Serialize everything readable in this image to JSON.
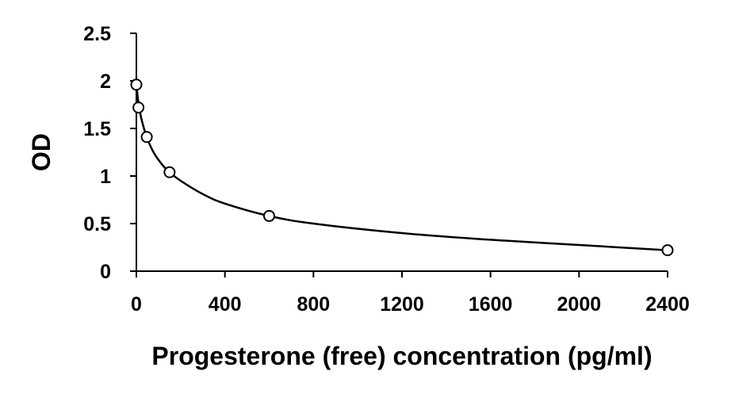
{
  "chart_data": {
    "type": "scatter",
    "title": "",
    "xlabel": "Progesterone (free) concentration (pg/ml)",
    "ylabel": "OD",
    "xlim": [
      0,
      2400
    ],
    "ylim": [
      0,
      2.5
    ],
    "x_ticks": [
      0,
      400,
      800,
      1200,
      1600,
      2000,
      2400
    ],
    "y_ticks": [
      0,
      0.5,
      1,
      1.5,
      2,
      2.5
    ],
    "x_tick_labels": [
      "0",
      "400",
      "800",
      "1200",
      "1600",
      "2000",
      "2400"
    ],
    "y_tick_labels": [
      "0",
      "0.5",
      "1",
      "1.5",
      "2",
      "2.5"
    ],
    "grid": false,
    "legend": "none",
    "series": [
      {
        "marker": "open-circle",
        "points": [
          {
            "x": 0,
            "y": 1.96
          },
          {
            "x": 9.4,
            "y": 1.72
          },
          {
            "x": 46.9,
            "y": 1.41
          },
          {
            "x": 150,
            "y": 1.04
          },
          {
            "x": 600,
            "y": 0.58
          },
          {
            "x": 2400,
            "y": 0.22
          }
        ]
      }
    ],
    "trendline": {
      "points": [
        {
          "x": 0,
          "y": 1.96
        },
        {
          "x": 10,
          "y": 1.76
        },
        {
          "x": 25,
          "y": 1.58
        },
        {
          "x": 50,
          "y": 1.39
        },
        {
          "x": 80,
          "y": 1.24
        },
        {
          "x": 120,
          "y": 1.11
        },
        {
          "x": 150,
          "y": 1.04
        },
        {
          "x": 200,
          "y": 0.95
        },
        {
          "x": 300,
          "y": 0.81
        },
        {
          "x": 400,
          "y": 0.71
        },
        {
          "x": 600,
          "y": 0.58
        },
        {
          "x": 800,
          "y": 0.5
        },
        {
          "x": 1200,
          "y": 0.4
        },
        {
          "x": 1600,
          "y": 0.33
        },
        {
          "x": 2000,
          "y": 0.275
        },
        {
          "x": 2400,
          "y": 0.22
        }
      ]
    },
    "colors": {
      "line": "#000000",
      "marker_stroke": "#000000",
      "marker_fill": "#ffffff"
    }
  }
}
